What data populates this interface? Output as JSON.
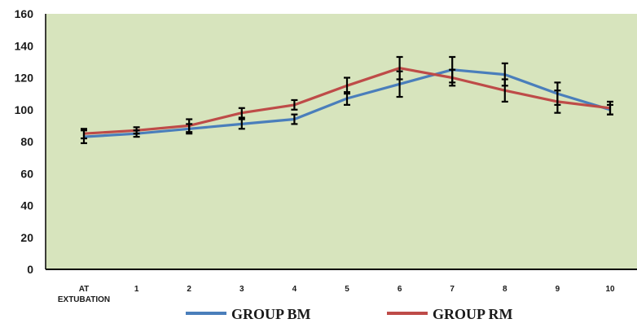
{
  "chart_data": {
    "type": "line",
    "categories": [
      [
        "AT",
        "EXTUBATION"
      ],
      [
        "1"
      ],
      [
        "2"
      ],
      [
        "3"
      ],
      [
        "4"
      ],
      [
        "5"
      ],
      [
        "6"
      ],
      [
        "7"
      ],
      [
        "8"
      ],
      [
        "9"
      ],
      [
        "10"
      ]
    ],
    "ylim": [
      0,
      160
    ],
    "yticks": [
      "0",
      "20",
      "40",
      "60",
      "80",
      "100",
      "120",
      "140",
      "160"
    ],
    "grid": false,
    "legend_position": "bottom",
    "plot_background": "#d7e4bd",
    "series": [
      {
        "name": "GROUP BM",
        "color": "#4a7ebb",
        "values": [
          83,
          85,
          88,
          91,
          94,
          107,
          116,
          125,
          122,
          110,
          100
        ],
        "error": [
          4,
          2,
          3,
          3,
          3,
          4,
          8,
          8,
          7,
          7,
          3
        ]
      },
      {
        "name": "GROUP RM",
        "color": "#be4b48",
        "values": [
          85,
          87,
          90,
          98,
          103,
          115,
          126,
          120,
          112,
          105,
          101
        ],
        "error": [
          3,
          2,
          4,
          3,
          3,
          5,
          7,
          5,
          7,
          7,
          4
        ]
      }
    ]
  }
}
